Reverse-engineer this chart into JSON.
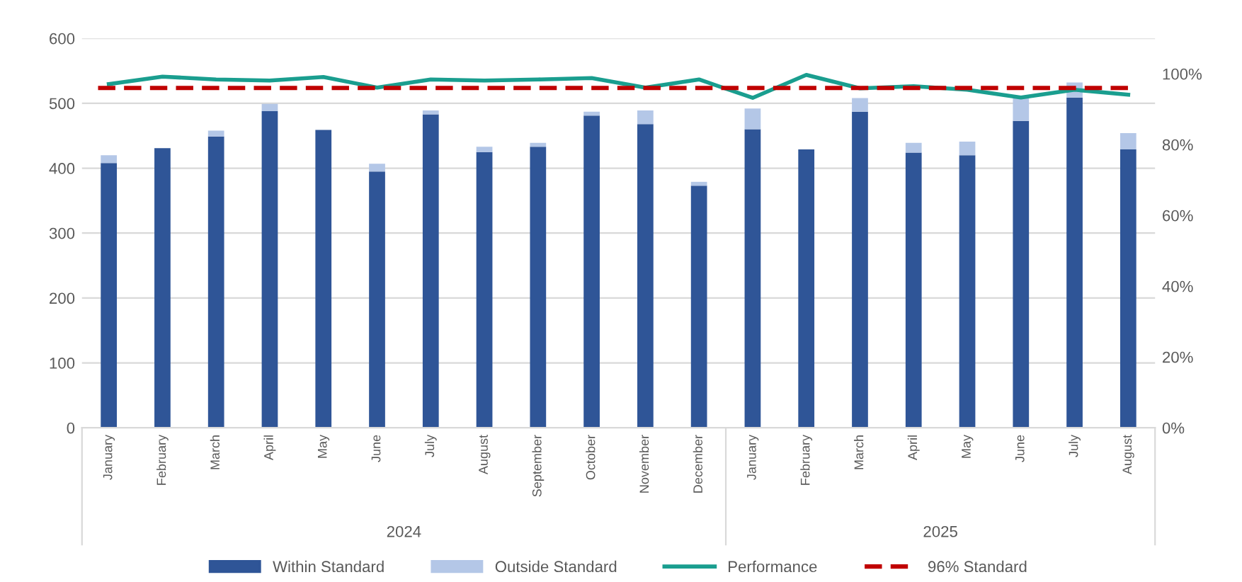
{
  "chart_data": {
    "type": "bar",
    "stacked": true,
    "categories": [
      "January",
      "February",
      "March",
      "April",
      "May",
      "June",
      "July",
      "August",
      "September",
      "October",
      "November",
      "December",
      "January",
      "February",
      "March",
      "April",
      "May",
      "June",
      "July",
      "August"
    ],
    "series": [
      {
        "name": "Within Standard",
        "color": "#2f5597",
        "values": [
          408,
          431,
          449,
          488,
          459,
          395,
          483,
          425,
          433,
          481,
          468,
          373,
          460,
          429,
          487,
          424,
          420,
          473,
          509,
          429
        ]
      },
      {
        "name": "Outside Standard",
        "color": "#b4c7e7",
        "values": [
          12,
          0,
          9,
          11,
          0,
          12,
          6,
          8,
          6,
          6,
          21,
          6,
          32,
          0,
          21,
          15,
          21,
          35,
          23,
          25
        ]
      },
      {
        "name": "Performance",
        "type": "line",
        "axis": "y2",
        "color": "#1a9e8f",
        "values": [
          97.1,
          99.2,
          98.4,
          98.1,
          99.1,
          96.1,
          98.4,
          98.1,
          98.4,
          98.8,
          96.1,
          98.4,
          93.2,
          99.7,
          95.9,
          96.5,
          95.5,
          93.3,
          95.5,
          94.1
        ]
      }
    ],
    "ref_lines": [
      {
        "axis": "y2",
        "value": 96,
        "label": "96% Standard",
        "color": "#c00000",
        "line_style": "dashed"
      }
    ],
    "annotations": [
      "2024",
      "2025"
    ],
    "ylim": [
      0,
      600
    ],
    "yticks": [
      0,
      100,
      200,
      300,
      400,
      500,
      600
    ],
    "y2lim": [
      0,
      110
    ],
    "y2ticks": [
      {
        "value": 0,
        "label": "0%"
      },
      {
        "value": 20,
        "label": "20%"
      },
      {
        "value": 40,
        "label": "40%"
      },
      {
        "value": 60,
        "label": "60%"
      },
      {
        "value": 80,
        "label": "80%"
      },
      {
        "value": 100,
        "label": "100%"
      }
    ],
    "grid": "y",
    "legend": "bottom"
  }
}
